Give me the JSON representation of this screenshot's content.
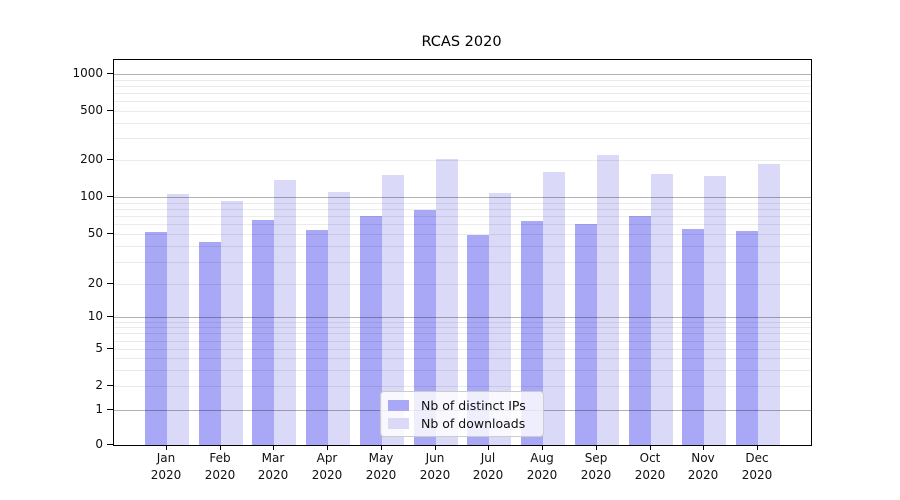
{
  "chart_data": {
    "type": "bar",
    "title": "RCAS 2020",
    "categories": [
      "Jan 2020",
      "Feb 2020",
      "Mar 2020",
      "Apr 2020",
      "May 2020",
      "Jun 2020",
      "Jul 2020",
      "Aug 2020",
      "Sep 2020",
      "Oct 2020",
      "Nov 2020",
      "Dec 2020"
    ],
    "series": [
      {
        "name": "Nb of distinct IPs",
        "color": "#a8a8f6",
        "values": [
          52,
          43,
          65,
          54,
          70,
          78,
          49,
          64,
          60,
          70,
          55,
          53
        ]
      },
      {
        "name": "Nb of downloads",
        "color": "#dadaf8",
        "values": [
          105,
          92,
          138,
          110,
          150,
          205,
          108,
          160,
          220,
          155,
          148,
          185
        ]
      }
    ],
    "xlabel": "",
    "ylabel": "",
    "y_axis": {
      "scale": "symlog",
      "tick_values": [
        0,
        1,
        2,
        5,
        10,
        20,
        50,
        100,
        200,
        500,
        1000
      ],
      "tick_labels": [
        "0",
        "1",
        "2",
        "5",
        "10",
        "20",
        "50",
        "100",
        "200",
        "500",
        "1000"
      ],
      "ylim": [
        0,
        1300
      ],
      "grid": "both",
      "major_grid_values": [
        1,
        10,
        100,
        1000
      ]
    },
    "legend": {
      "position": "lower-center-inside"
    }
  },
  "colors": {
    "background": "#ffffff",
    "spine": "#000000",
    "bar_distinct_ips": "#a8a8f6",
    "bar_downloads": "#dadaf8"
  }
}
